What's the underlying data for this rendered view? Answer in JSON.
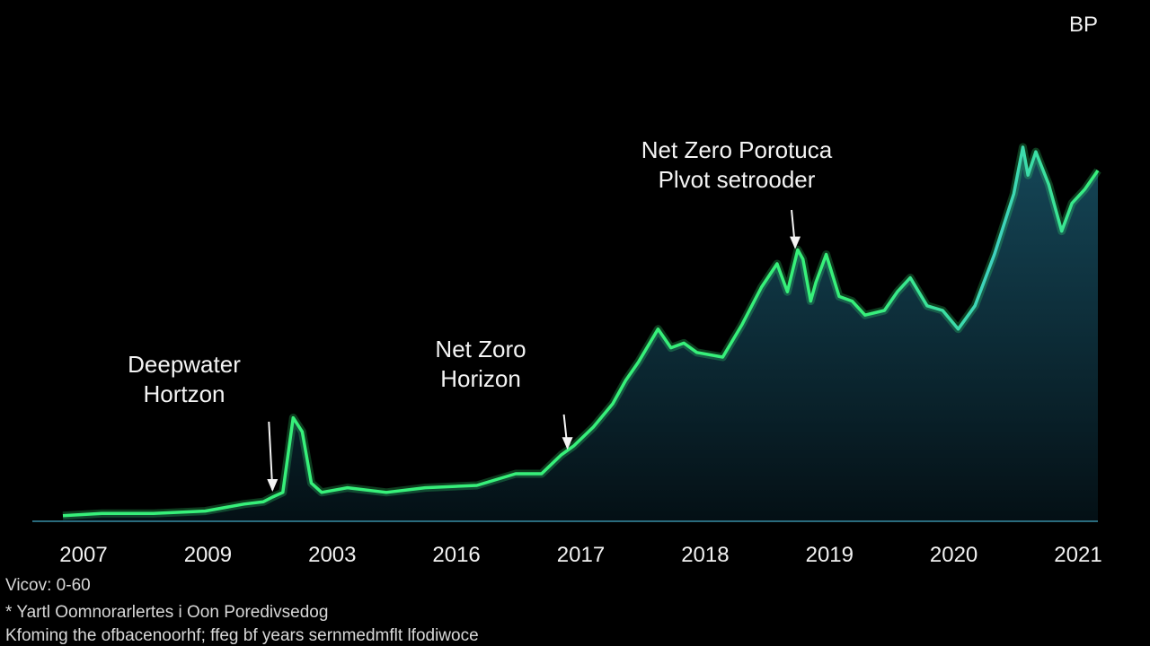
{
  "brand": "BP",
  "footer": {
    "line1": "Vicov: 0-60",
    "line2": "* Yartl Oomnorarlertes i Oon Poredivsedog",
    "line3": "Kfoming the ofbacenoorhf; ffeg bf years sernmedmflt lfodiwoce"
  },
  "colors": {
    "line": "#37f07a",
    "line_alt": "#3fb6e8",
    "fill_top": "#164a5c",
    "fill_bottom": "#041015",
    "axis": "#2a6b7d"
  },
  "chart_data": {
    "type": "area",
    "title": "",
    "xlabel": "",
    "ylabel": "",
    "x_tick_labels": [
      "2007",
      "2009",
      "2003",
      "2016",
      "2017",
      "2018",
      "2019",
      "2020",
      "2021"
    ],
    "x_range": [
      0,
      8
    ],
    "ylim": [
      0,
      100
    ],
    "grid": false,
    "series": [
      {
        "values": [
          [
            0.0,
            1
          ],
          [
            0.3,
            1.5
          ],
          [
            0.7,
            1.5
          ],
          [
            1.1,
            2
          ],
          [
            1.4,
            3.5
          ],
          [
            1.55,
            4
          ],
          [
            1.62,
            5
          ],
          [
            1.7,
            6
          ],
          [
            1.78,
            22
          ],
          [
            1.85,
            19
          ],
          [
            1.92,
            8
          ],
          [
            2.0,
            6
          ],
          [
            2.2,
            7
          ],
          [
            2.5,
            6
          ],
          [
            2.8,
            7
          ],
          [
            3.2,
            7.5
          ],
          [
            3.5,
            10
          ],
          [
            3.7,
            10
          ],
          [
            3.85,
            14
          ],
          [
            3.95,
            16
          ],
          [
            4.1,
            20
          ],
          [
            4.25,
            25
          ],
          [
            4.35,
            30
          ],
          [
            4.45,
            34
          ],
          [
            4.6,
            41
          ],
          [
            4.7,
            37
          ],
          [
            4.8,
            38
          ],
          [
            4.9,
            36
          ],
          [
            5.1,
            35
          ],
          [
            5.25,
            42
          ],
          [
            5.4,
            50
          ],
          [
            5.52,
            55
          ],
          [
            5.6,
            49
          ],
          [
            5.68,
            58
          ],
          [
            5.72,
            56
          ],
          [
            5.78,
            47
          ],
          [
            5.82,
            51
          ],
          [
            5.9,
            57
          ],
          [
            6.0,
            48
          ],
          [
            6.1,
            47
          ],
          [
            6.2,
            44
          ],
          [
            6.35,
            45
          ],
          [
            6.45,
            49
          ],
          [
            6.55,
            52
          ],
          [
            6.68,
            46
          ],
          [
            6.8,
            45
          ],
          [
            6.92,
            41
          ],
          [
            7.05,
            46
          ],
          [
            7.2,
            57
          ],
          [
            7.35,
            70
          ],
          [
            7.42,
            80
          ],
          [
            7.46,
            74
          ],
          [
            7.52,
            79
          ],
          [
            7.62,
            72
          ],
          [
            7.72,
            62
          ],
          [
            7.8,
            68
          ],
          [
            7.9,
            71
          ],
          [
            8.0,
            75
          ]
        ]
      }
    ],
    "annotations": [
      {
        "lines": [
          "Deepwater",
          "Hortzon"
        ],
        "x": 1.62,
        "y": 5
      },
      {
        "lines": [
          "Net Zoro",
          "Horizon"
        ],
        "x": 3.9,
        "y": 14
      },
      {
        "lines": [
          "Net Zero Porotuca",
          "Plvot setrooder"
        ],
        "x": 5.66,
        "y": 57
      }
    ]
  }
}
